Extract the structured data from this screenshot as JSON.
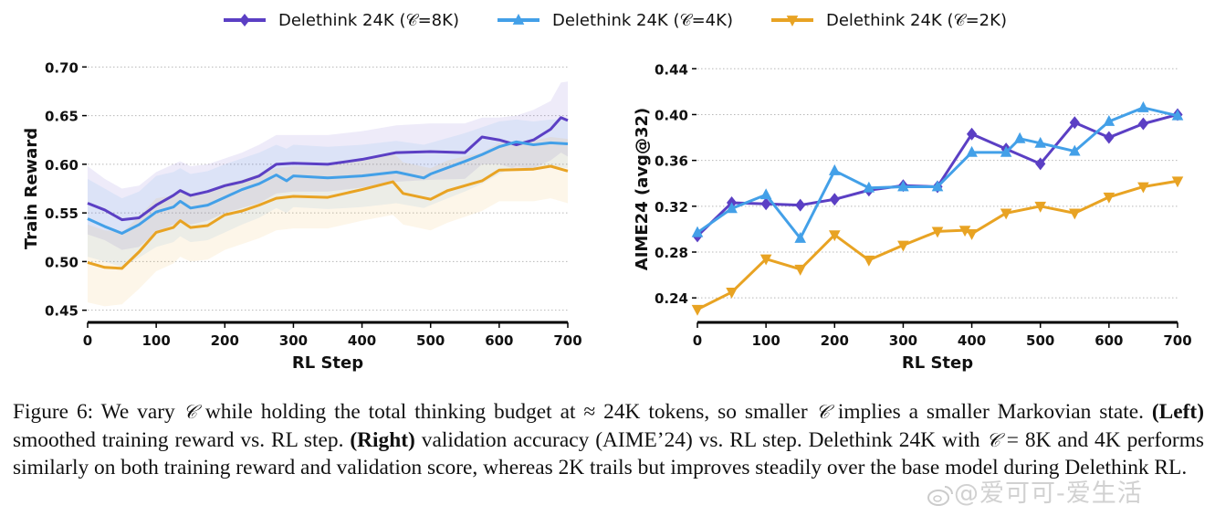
{
  "legend": {
    "entries": [
      {
        "label": "Delethink 24K (𝒞=8K)",
        "color": "#5B3FC4",
        "marker": "diamond"
      },
      {
        "label": "Delethink 24K (𝒞=4K)",
        "color": "#43A0E8",
        "marker": "triangle-up"
      },
      {
        "label": "Delethink 24K (𝒞=2K)",
        "color": "#E8A323",
        "marker": "triangle-down"
      }
    ]
  },
  "chart_data": [
    {
      "type": "line",
      "title": "",
      "xlabel": "RL Step",
      "ylabel": "Train Reward",
      "xlim": [
        0,
        700
      ],
      "ylim": [
        0.445,
        0.705
      ],
      "xticks": [
        0,
        100,
        200,
        300,
        400,
        500,
        600,
        700
      ],
      "xtick_labels": [
        "0",
        "100",
        "200",
        "300",
        "400",
        "500",
        "600",
        "700"
      ],
      "yticks": [
        0.45,
        0.5,
        0.55,
        0.6,
        0.65,
        0.7
      ],
      "ytick_labels": [
        "0.45",
        "0.50",
        "0.55",
        "0.60",
        "0.65",
        "0.70"
      ],
      "grid": "horizontal-dotted",
      "shaded_band": true,
      "series": [
        {
          "name": "Delethink 24K (𝒞=8K)",
          "color": "#5B3FC4",
          "x": [
            0,
            25,
            50,
            75,
            100,
            125,
            135,
            150,
            175,
            200,
            225,
            250,
            275,
            300,
            350,
            400,
            450,
            500,
            550,
            575,
            600,
            625,
            650,
            675,
            690,
            700
          ],
          "y": [
            0.56,
            0.553,
            0.543,
            0.545,
            0.558,
            0.568,
            0.573,
            0.568,
            0.572,
            0.578,
            0.582,
            0.588,
            0.6,
            0.601,
            0.6,
            0.605,
            0.612,
            0.613,
            0.612,
            0.628,
            0.625,
            0.62,
            0.625,
            0.636,
            0.648,
            0.645
          ],
          "band_upper": [
            0.598,
            0.585,
            0.575,
            0.578,
            0.592,
            0.6,
            0.603,
            0.598,
            0.6,
            0.606,
            0.612,
            0.62,
            0.63,
            0.63,
            0.63,
            0.634,
            0.64,
            0.642,
            0.642,
            0.648,
            0.648,
            0.65,
            0.656,
            0.665,
            0.684,
            0.685
          ],
          "band_lower": [
            0.528,
            0.522,
            0.512,
            0.515,
            0.53,
            0.538,
            0.542,
            0.538,
            0.542,
            0.55,
            0.555,
            0.56,
            0.57,
            0.572,
            0.572,
            0.576,
            0.582,
            0.584,
            0.585,
            0.6,
            0.6,
            0.595,
            0.596,
            0.604,
            0.612,
            0.608
          ]
        },
        {
          "name": "Delethink 24K (𝒞=4K)",
          "color": "#43A0E8",
          "x": [
            0,
            25,
            50,
            75,
            100,
            125,
            135,
            150,
            175,
            200,
            225,
            250,
            275,
            290,
            300,
            350,
            400,
            450,
            490,
            500,
            550,
            575,
            600,
            625,
            650,
            675,
            700
          ],
          "y": [
            0.544,
            0.536,
            0.529,
            0.538,
            0.551,
            0.556,
            0.562,
            0.555,
            0.558,
            0.566,
            0.574,
            0.58,
            0.589,
            0.583,
            0.588,
            0.586,
            0.588,
            0.592,
            0.586,
            0.59,
            0.603,
            0.61,
            0.618,
            0.623,
            0.62,
            0.622,
            0.621
          ],
          "band_upper": [
            0.585,
            0.575,
            0.565,
            0.572,
            0.588,
            0.592,
            0.596,
            0.59,
            0.593,
            0.6,
            0.606,
            0.612,
            0.62,
            0.616,
            0.62,
            0.618,
            0.62,
            0.624,
            0.62,
            0.622,
            0.632,
            0.638,
            0.644,
            0.646,
            0.644,
            0.646,
            0.646
          ],
          "band_lower": [
            0.505,
            0.5,
            0.494,
            0.504,
            0.515,
            0.52,
            0.526,
            0.52,
            0.522,
            0.53,
            0.538,
            0.545,
            0.555,
            0.55,
            0.556,
            0.554,
            0.556,
            0.56,
            0.555,
            0.558,
            0.572,
            0.58,
            0.59,
            0.598,
            0.595,
            0.598,
            0.596
          ]
        },
        {
          "name": "Delethink 24K (𝒞=2K)",
          "color": "#E8A323",
          "x": [
            0,
            25,
            50,
            75,
            100,
            125,
            135,
            150,
            175,
            200,
            225,
            250,
            275,
            300,
            350,
            400,
            445,
            460,
            500,
            525,
            550,
            575,
            600,
            650,
            675,
            700
          ],
          "y": [
            0.499,
            0.494,
            0.493,
            0.51,
            0.53,
            0.535,
            0.542,
            0.535,
            0.537,
            0.548,
            0.552,
            0.558,
            0.565,
            0.567,
            0.566,
            0.574,
            0.582,
            0.57,
            0.564,
            0.573,
            0.578,
            0.583,
            0.594,
            0.595,
            0.598,
            0.593
          ],
          "band_upper": [
            0.538,
            0.532,
            0.53,
            0.546,
            0.565,
            0.568,
            0.574,
            0.568,
            0.57,
            0.58,
            0.584,
            0.59,
            0.596,
            0.598,
            0.598,
            0.606,
            0.612,
            0.602,
            0.596,
            0.604,
            0.608,
            0.612,
            0.622,
            0.624,
            0.628,
            0.626
          ],
          "band_lower": [
            0.458,
            0.454,
            0.456,
            0.472,
            0.49,
            0.498,
            0.505,
            0.5,
            0.502,
            0.512,
            0.518,
            0.524,
            0.532,
            0.534,
            0.534,
            0.542,
            0.548,
            0.538,
            0.532,
            0.54,
            0.546,
            0.552,
            0.562,
            0.562,
            0.565,
            0.56
          ]
        }
      ]
    },
    {
      "type": "line",
      "title": "",
      "xlabel": "RL Step",
      "ylabel": "AIME24 (avg@32)",
      "xlim": [
        0,
        700
      ],
      "ylim": [
        0.225,
        0.445
      ],
      "xticks": [
        0,
        100,
        200,
        300,
        400,
        500,
        600,
        700
      ],
      "xtick_labels": [
        "0",
        "100",
        "200",
        "300",
        "400",
        "500",
        "600",
        "700"
      ],
      "yticks": [
        0.24,
        0.28,
        0.32,
        0.36,
        0.4,
        0.44
      ],
      "ytick_labels": [
        "0.24",
        "0.28",
        "0.32",
        "0.36",
        "0.40",
        "0.44"
      ],
      "grid": "horizontal-dotted",
      "series": [
        {
          "name": "Delethink 24K (𝒞=8K)",
          "color": "#5B3FC4",
          "marker": "diamond",
          "x": [
            0,
            50,
            100,
            150,
            200,
            250,
            300,
            350,
            400,
            450,
            500,
            550,
            600,
            650,
            700
          ],
          "y": [
            0.294,
            0.323,
            0.322,
            0.321,
            0.326,
            0.334,
            0.338,
            0.337,
            0.383,
            0.37,
            0.357,
            0.393,
            0.38,
            0.392,
            0.4
          ]
        },
        {
          "name": "Delethink 24K (𝒞=4K)",
          "color": "#43A0E8",
          "marker": "triangle-up",
          "x": [
            0,
            50,
            100,
            150,
            200,
            250,
            300,
            350,
            400,
            450,
            470,
            500,
            550,
            600,
            650,
            700
          ],
          "y": [
            0.297,
            0.318,
            0.33,
            0.292,
            0.351,
            0.336,
            0.337,
            0.337,
            0.367,
            0.367,
            0.379,
            0.375,
            0.368,
            0.394,
            0.406,
            0.399
          ]
        },
        {
          "name": "Delethink 24K (𝒞=2K)",
          "color": "#E8A323",
          "marker": "triangle-down",
          "x": [
            0,
            50,
            100,
            150,
            200,
            250,
            300,
            350,
            390,
            400,
            450,
            500,
            550,
            600,
            650,
            700
          ],
          "y": [
            0.23,
            0.245,
            0.274,
            0.265,
            0.295,
            0.273,
            0.286,
            0.298,
            0.299,
            0.296,
            0.314,
            0.32,
            0.314,
            0.328,
            0.337,
            0.342
          ]
        }
      ]
    }
  ],
  "caption": {
    "figure_label": "Figure 6:",
    "part1": " We vary ",
    "sym_c": "𝒞",
    "part2": " while holding the total thinking budget at ≈ 24K tokens, so smaller ",
    "part3": " implies a smaller Markovian state. ",
    "left_label": "(Left)",
    "part4": " smoothed training reward vs. RL step. ",
    "right_label": "(Right)",
    "part5": " validation accuracy (AIME’24) vs. RL step. Delethink 24K with ",
    "eq": " = ",
    "part6": "8K and 4K performs similarly on both training reward and validation score, whereas 2K trails but improves steadily over the base model during Delethink RL."
  },
  "watermark": {
    "text": "@爱可可-爱生活"
  }
}
